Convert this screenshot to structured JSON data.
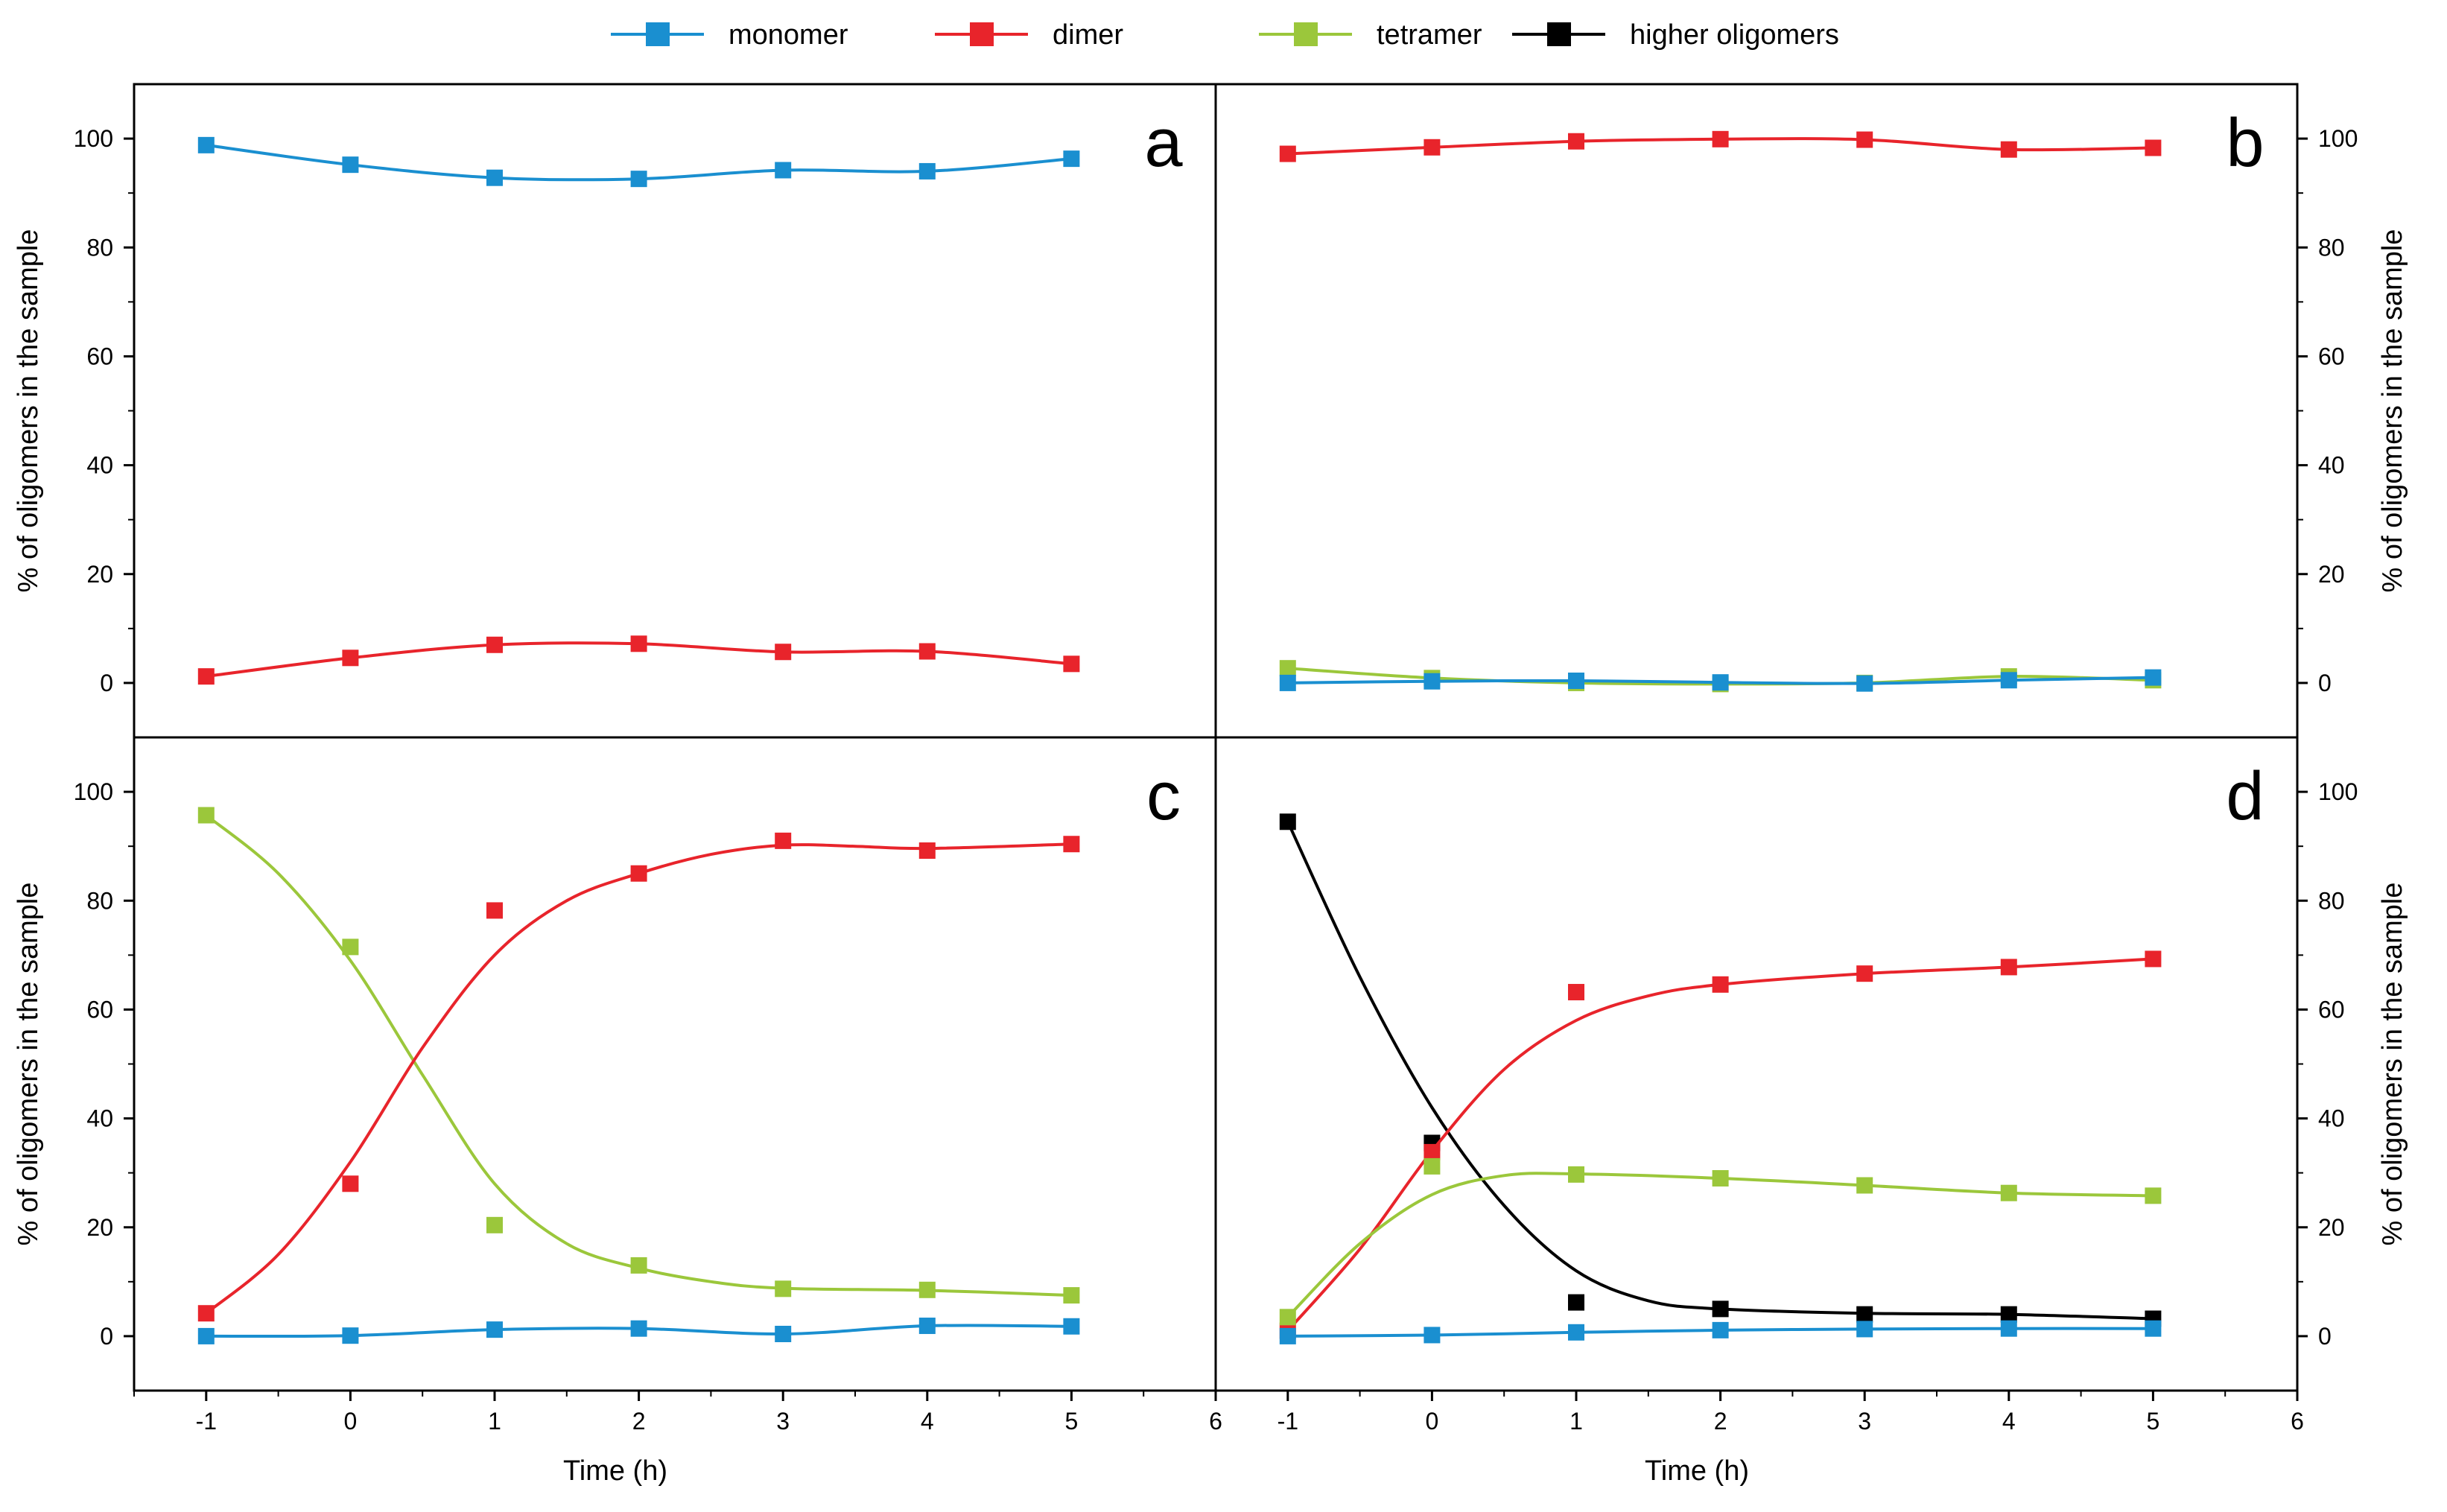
{
  "legend": {
    "placement": "top-center",
    "items": [
      {
        "name": "monomer",
        "color": "#1a8fd0"
      },
      {
        "name": "dimer",
        "color": "#e8242b"
      },
      {
        "name": "tetramer",
        "color": "#9bc73b"
      },
      {
        "name": "higher oligomers",
        "color": "#000000"
      }
    ]
  },
  "chart_data": [
    {
      "panel": "a",
      "type": "scatter",
      "x": [
        -1,
        0,
        1,
        2,
        3,
        4,
        5
      ],
      "xlim": [
        -1.5,
        6
      ],
      "ylim": [
        -10,
        110
      ],
      "xticks": [
        -1,
        0,
        1,
        2,
        3,
        4,
        5,
        6
      ],
      "yticks": [
        0,
        20,
        40,
        60,
        80,
        100
      ],
      "xlabel": "",
      "ylabel": "% of oligomers in the sample",
      "yaxis_side": "left",
      "series": [
        {
          "name": "monomer",
          "color": "#1a8fd0",
          "values": [
            98.8,
            95.2,
            92.8,
            92.6,
            94.2,
            94.0,
            96.3
          ]
        },
        {
          "name": "dimer",
          "color": "#e8242b",
          "values": [
            1.2,
            4.6,
            7.0,
            7.2,
            5.7,
            5.8,
            3.5
          ]
        }
      ]
    },
    {
      "panel": "b",
      "type": "scatter",
      "x": [
        -1,
        0,
        1,
        2,
        3,
        4,
        5
      ],
      "xlim": [
        -1.5,
        6
      ],
      "ylim": [
        -10,
        110
      ],
      "xticks": [
        -1,
        0,
        1,
        2,
        3,
        4,
        5,
        6
      ],
      "yticks": [
        0,
        20,
        40,
        60,
        80,
        100
      ],
      "xlabel": "",
      "ylabel": "% of oligomers in the sample",
      "yaxis_side": "right",
      "series": [
        {
          "name": "dimer",
          "color": "#e8242b",
          "values": [
            97.2,
            98.4,
            99.5,
            99.9,
            99.8,
            98.0,
            98.3
          ]
        },
        {
          "name": "tetramer",
          "color": "#9bc73b",
          "values": [
            2.7,
            0.9,
            0.0,
            -0.2,
            0.0,
            1.2,
            0.5
          ]
        },
        {
          "name": "monomer",
          "color": "#1a8fd0",
          "values": [
            0.0,
            0.3,
            0.4,
            0.1,
            -0.1,
            0.5,
            1.0
          ]
        }
      ]
    },
    {
      "panel": "c",
      "type": "scatter",
      "x": [
        -1,
        0,
        1,
        2,
        3,
        4,
        5
      ],
      "xlim": [
        -1.5,
        6
      ],
      "ylim": [
        -10,
        110
      ],
      "xticks": [
        -1,
        0,
        1,
        2,
        3,
        4,
        5,
        6
      ],
      "yticks": [
        0,
        20,
        40,
        60,
        80,
        100
      ],
      "xlabel": "Time (h)",
      "ylabel": "% of oligomers in the sample",
      "yaxis_side": "left",
      "series": [
        {
          "name": "tetramer",
          "color": "#9bc73b",
          "values": [
            95.7,
            71.5,
            20.4,
            13.0,
            8.7,
            8.5,
            7.5
          ],
          "curve": [
            [
              -1,
              95.7
            ],
            [
              -0.5,
              85
            ],
            [
              0,
              69
            ],
            [
              0.5,
              48
            ],
            [
              1,
              28
            ],
            [
              1.5,
              17
            ],
            [
              2,
              12.5
            ],
            [
              2.5,
              10
            ],
            [
              3,
              8.8
            ],
            [
              4,
              8.4
            ],
            [
              5,
              7.5
            ]
          ]
        },
        {
          "name": "dimer",
          "color": "#e8242b",
          "values": [
            4.2,
            28.0,
            78.2,
            85.0,
            91.0,
            89.2,
            90.4
          ],
          "curve": [
            [
              -1,
              4.2
            ],
            [
              -0.5,
              15
            ],
            [
              0,
              32
            ],
            [
              0.5,
              53
            ],
            [
              1,
              70
            ],
            [
              1.5,
              80
            ],
            [
              2,
              85
            ],
            [
              2.5,
              88.5
            ],
            [
              3,
              90.2
            ],
            [
              3.5,
              90.0
            ],
            [
              4,
              89.6
            ],
            [
              5,
              90.4
            ]
          ]
        },
        {
          "name": "monomer",
          "color": "#1a8fd0",
          "values": [
            0.0,
            0.1,
            1.2,
            1.4,
            0.4,
            1.9,
            1.8
          ]
        }
      ]
    },
    {
      "panel": "d",
      "type": "scatter",
      "x": [
        -1,
        0,
        1,
        2,
        3,
        4,
        5
      ],
      "xlim": [
        -1.5,
        6
      ],
      "ylim": [
        -10,
        110
      ],
      "xticks": [
        -1,
        0,
        1,
        2,
        3,
        4,
        5,
        6
      ],
      "yticks": [
        0,
        20,
        40,
        60,
        80,
        100
      ],
      "xlabel": "Time (h)",
      "ylabel": "% of oligomers in the sample",
      "yaxis_side": "right",
      "series": [
        {
          "name": "higher oligomers",
          "color": "#000000",
          "values": [
            94.5,
            35.5,
            6.2,
            5.0,
            4.0,
            4.0,
            3.2
          ],
          "curve": [
            [
              -1,
              94.5
            ],
            [
              -0.5,
              66
            ],
            [
              0,
              42
            ],
            [
              0.5,
              24
            ],
            [
              1,
              12
            ],
            [
              1.5,
              6.5
            ],
            [
              2,
              5.0
            ],
            [
              3,
              4.2
            ],
            [
              4,
              4.0
            ],
            [
              5,
              3.2
            ]
          ]
        },
        {
          "name": "dimer",
          "color": "#e8242b",
          "values": [
            1.0,
            33.8,
            63.2,
            64.6,
            66.6,
            67.8,
            69.3
          ],
          "curve": [
            [
              -1,
              1.0
            ],
            [
              -0.5,
              16
            ],
            [
              0,
              34
            ],
            [
              0.5,
              49
            ],
            [
              1,
              58
            ],
            [
              1.5,
              62.5
            ],
            [
              2,
              64.6
            ],
            [
              3,
              66.6
            ],
            [
              4,
              67.8
            ],
            [
              5,
              69.3
            ]
          ]
        },
        {
          "name": "tetramer",
          "color": "#9bc73b",
          "values": [
            3.5,
            31.2,
            29.7,
            29.0,
            27.7,
            26.3,
            25.8
          ],
          "curve": [
            [
              -1,
              3.5
            ],
            [
              -0.5,
              17
            ],
            [
              0,
              26
            ],
            [
              0.5,
              29.5
            ],
            [
              1,
              29.8
            ],
            [
              2,
              29.0
            ],
            [
              3,
              27.7
            ],
            [
              4,
              26.3
            ],
            [
              5,
              25.8
            ]
          ]
        },
        {
          "name": "monomer",
          "color": "#1a8fd0",
          "values": [
            0.0,
            0.2,
            0.7,
            1.1,
            1.3,
            1.4,
            1.4
          ]
        }
      ]
    }
  ]
}
